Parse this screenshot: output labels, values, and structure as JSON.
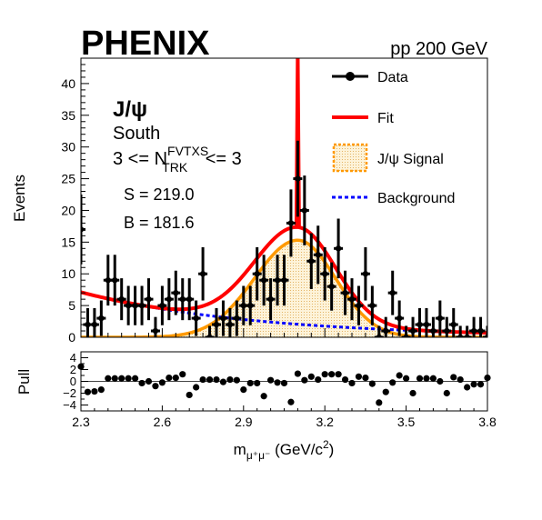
{
  "chart_data": [
    {
      "type": "scatter",
      "panel": "main",
      "experiment": "PHENIX",
      "energy_label": "pp 200 GeV",
      "ylabel": "Events",
      "xlim": [
        2.3,
        3.8
      ],
      "ylim": [
        0,
        44
      ],
      "yticks": [
        0,
        5,
        10,
        15,
        20,
        25,
        30,
        35,
        40
      ],
      "xticks": [
        2.3,
        2.6,
        2.9,
        3.2,
        3.5,
        3.8
      ],
      "annotations": {
        "particle": "J/ψ",
        "arm": "South",
        "cut_prefix": "3 <= N",
        "cut_sup": "FVTXS",
        "cut_sub": "TRK",
        "cut_suffix": " <= 3",
        "signal": "S = 219.0",
        "background": "B = 181.6"
      },
      "legend": [
        {
          "label": "Data",
          "style": "marker",
          "color": "#000000"
        },
        {
          "label": "Fit",
          "style": "line",
          "color": "#ff0000"
        },
        {
          "label": "J/ψ Signal",
          "style": "fill",
          "color": "#ff9900"
        },
        {
          "label": "Background",
          "style": "dashed",
          "color": "#0000ff"
        }
      ],
      "data_points": {
        "x": [
          2.3,
          2.325,
          2.35,
          2.375,
          2.4,
          2.425,
          2.45,
          2.475,
          2.5,
          2.525,
          2.55,
          2.575,
          2.6,
          2.625,
          2.65,
          2.675,
          2.7,
          2.725,
          2.75,
          2.775,
          2.8,
          2.825,
          2.85,
          2.875,
          2.9,
          2.925,
          2.95,
          2.975,
          3.0,
          3.025,
          3.05,
          3.075,
          3.1,
          3.125,
          3.15,
          3.175,
          3.2,
          3.225,
          3.25,
          3.275,
          3.3,
          3.325,
          3.35,
          3.375,
          3.4,
          3.425,
          3.45,
          3.475,
          3.5,
          3.525,
          3.55,
          3.575,
          3.6,
          3.625,
          3.65,
          3.675,
          3.7,
          3.725,
          3.75,
          3.775,
          3.8
        ],
        "y": [
          17,
          2,
          2,
          3,
          9,
          9,
          6,
          5,
          5,
          5,
          6,
          1,
          5,
          6,
          7,
          6,
          6,
          3,
          10,
          0,
          2,
          3,
          2,
          3,
          5,
          5,
          10,
          9,
          6,
          9,
          9,
          18,
          25,
          20,
          12,
          13,
          10,
          8,
          14,
          7,
          6,
          5,
          10,
          5,
          0,
          1,
          7,
          3,
          0,
          1,
          2,
          2,
          1,
          3,
          1,
          2,
          0,
          0,
          1,
          1,
          0
        ],
        "yerr": [
          5.5,
          2.6,
          2.6,
          2.8,
          4.0,
          4.0,
          3.3,
          3.1,
          3.1,
          3.1,
          3.3,
          2.2,
          3.1,
          3.3,
          3.5,
          3.3,
          3.3,
          2.8,
          4.2,
          1.8,
          2.6,
          2.8,
          2.6,
          2.8,
          3.1,
          3.1,
          4.2,
          4.0,
          3.3,
          4.0,
          4.0,
          5.3,
          6.0,
          5.5,
          4.4,
          4.6,
          4.2,
          3.8,
          4.7,
          3.5,
          3.3,
          3.1,
          4.2,
          3.1,
          1.8,
          2.2,
          3.5,
          2.8,
          1.8,
          2.2,
          2.6,
          2.6,
          2.2,
          2.8,
          2.2,
          2.6,
          1.8,
          1.8,
          2.2,
          2.2,
          1.8
        ]
      },
      "fit_params": {
        "signal_amp": 15.3,
        "mean": 3.1,
        "sigma_left": 0.16,
        "sigma_right": 0.14,
        "bkg_amp": 7.1,
        "bkg_decay": 1.55,
        "spike_height": 45
      }
    },
    {
      "type": "scatter",
      "panel": "pull",
      "ylabel": "Pull",
      "xlabel_main": "m",
      "xlabel_sub": "μ⁺μ⁻",
      "xlabel_unit": " (GeV/c",
      "xlabel_sup": "2",
      "xlabel_close": ")",
      "xlim": [
        2.3,
        3.8
      ],
      "ylim": [
        -5,
        5
      ],
      "yticks": [
        4,
        2,
        0,
        -2,
        -4
      ],
      "xtick_labels": [
        "2.3",
        "2.6",
        "2.9",
        "3.2",
        "3.5",
        "3.8"
      ],
      "x": [
        2.3,
        2.325,
        2.35,
        2.375,
        2.4,
        2.425,
        2.45,
        2.475,
        2.5,
        2.525,
        2.55,
        2.575,
        2.6,
        2.625,
        2.65,
        2.675,
        2.7,
        2.725,
        2.75,
        2.775,
        2.8,
        2.825,
        2.85,
        2.875,
        2.9,
        2.925,
        2.95,
        2.975,
        3.0,
        3.025,
        3.05,
        3.075,
        3.1,
        3.125,
        3.15,
        3.175,
        3.2,
        3.225,
        3.25,
        3.275,
        3.3,
        3.325,
        3.35,
        3.375,
        3.4,
        3.425,
        3.45,
        3.475,
        3.5,
        3.525,
        3.55,
        3.575,
        3.6,
        3.625,
        3.65,
        3.675,
        3.7,
        3.725,
        3.75,
        3.775,
        3.8
      ],
      "y": [
        2.5,
        -1.8,
        -1.7,
        -1.4,
        0.5,
        0.5,
        0.5,
        0.5,
        0.5,
        -0.3,
        0.0,
        -0.8,
        -0.2,
        0.6,
        0.6,
        1.2,
        -2.3,
        -1.0,
        0.3,
        0.3,
        0.3,
        -0.1,
        0.3,
        0.2,
        -1.4,
        -0.3,
        -0.3,
        -2.5,
        0.2,
        -0.2,
        -0.3,
        -3.5,
        1.3,
        0.2,
        0.8,
        0.3,
        1.2,
        1.2,
        1.2,
        0.3,
        -0.3,
        0.8,
        0.6,
        -0.4,
        -3.6,
        -1.8,
        -0.2,
        1.0,
        0.5,
        -2.0,
        0.5,
        0.5,
        0.5,
        0.0,
        -2.0,
        0.7,
        0.3,
        -1.0,
        -0.5,
        -0.5,
        0.6
      ]
    }
  ]
}
